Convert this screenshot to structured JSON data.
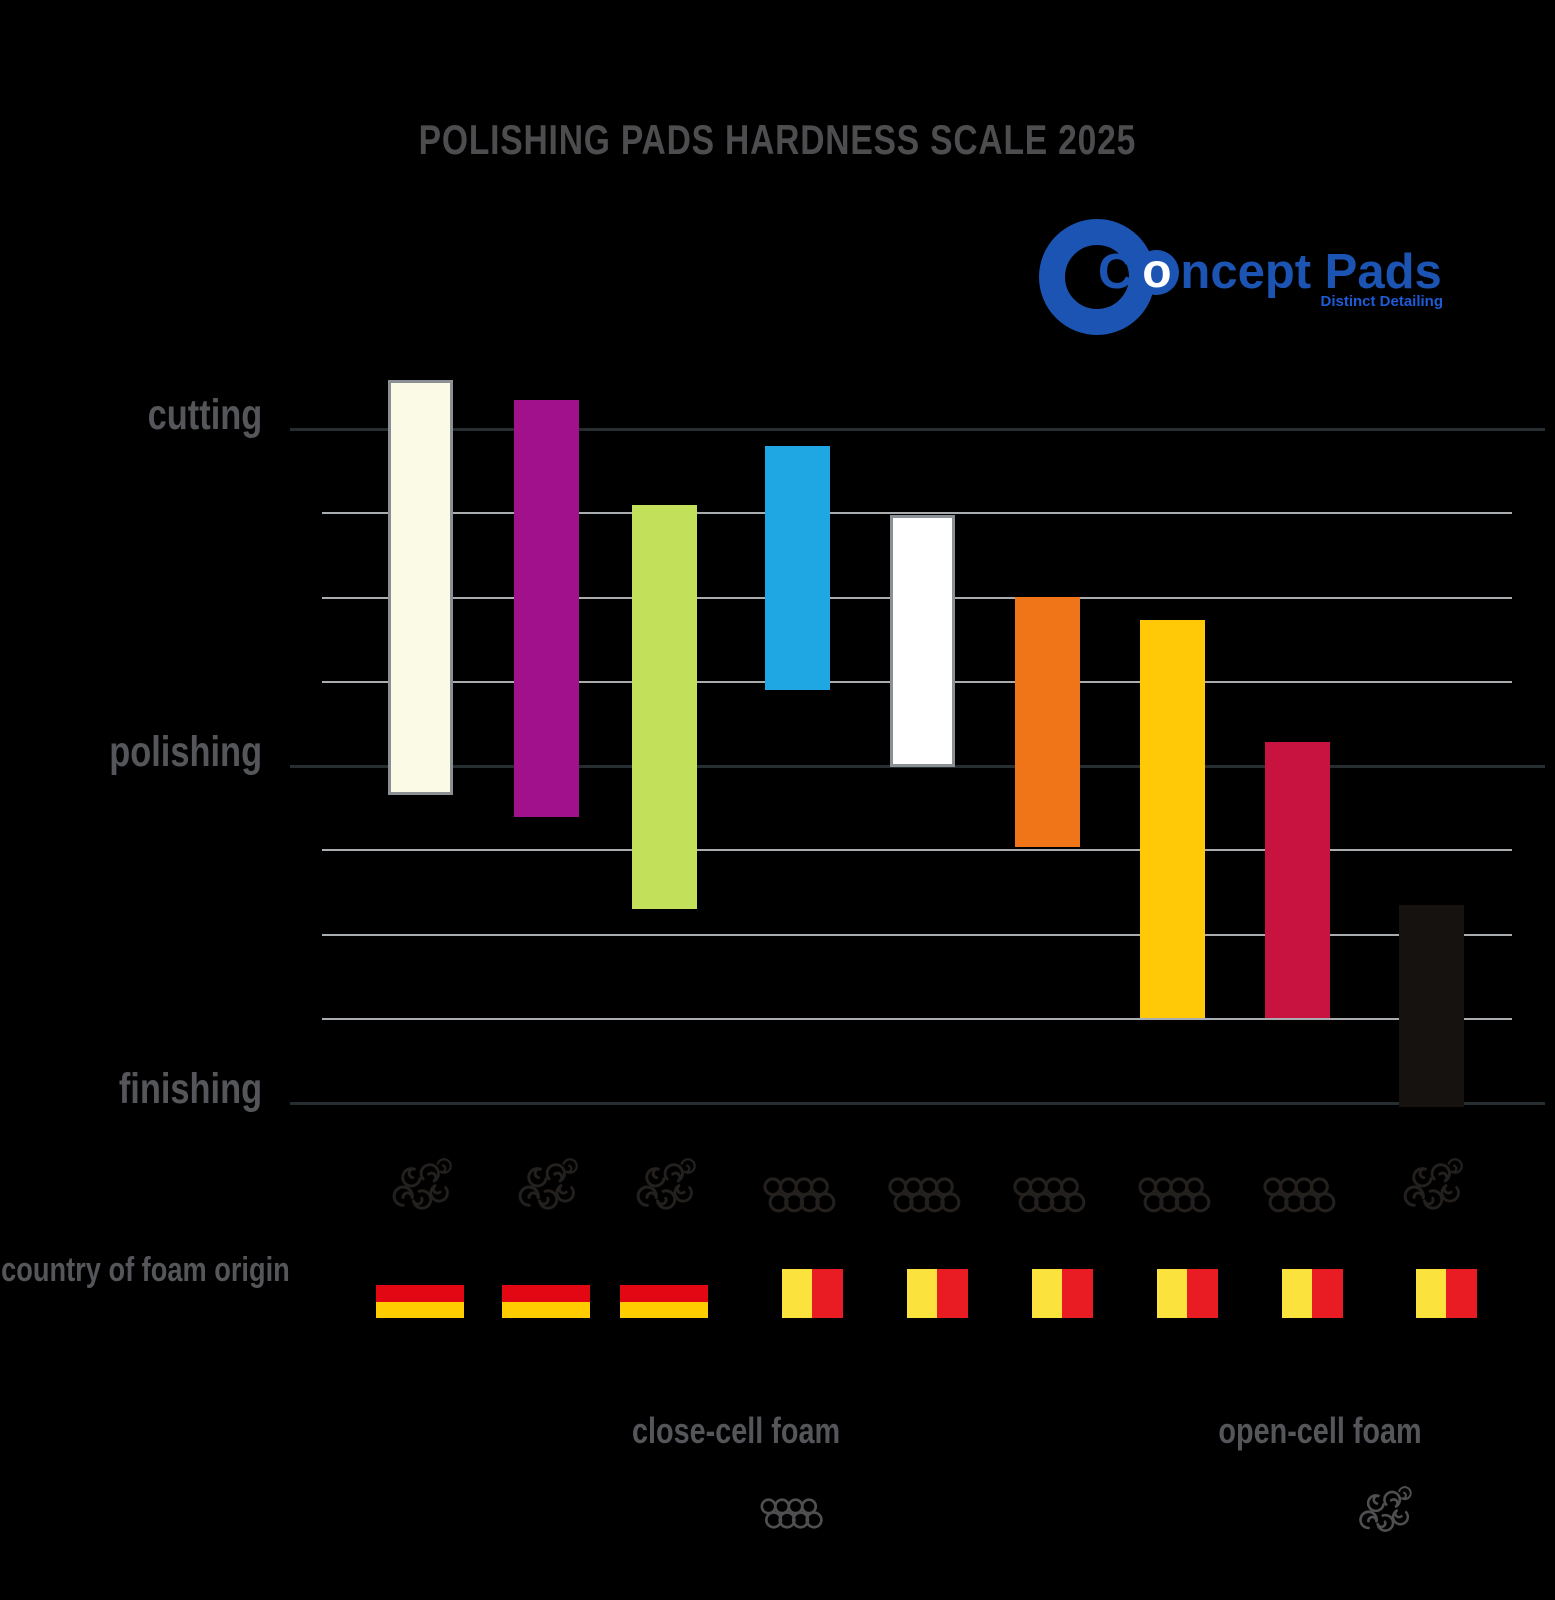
{
  "title": "POLISHING PADS HARDNESS SCALE 2025",
  "logo": {
    "brand": "Concept Pads",
    "tagline": "Distinct Detailing",
    "brand_color": "#1C54B4"
  },
  "chart_data": {
    "type": "bar",
    "subtype": "floating-range-columns",
    "title": "POLISHING PADS HARDNESS SCALE 2025",
    "orientation": "vertical-range-top-hard",
    "y_axis": {
      "direction": "top-to-bottom",
      "ticks": [
        {
          "label": "cutting",
          "unit": 0
        },
        {
          "label": "polishing",
          "unit": 4
        },
        {
          "label": "finishing",
          "unit": 8
        }
      ],
      "minor_gridlines_between": 3,
      "range_units": [
        0,
        8
      ]
    },
    "x_axis": {
      "label": "country of foam origin"
    },
    "pads": [
      {
        "color_name": "ivory",
        "hex": "#FAFAE6",
        "border": true,
        "foam": "open-cell",
        "country": "germany",
        "range": [
          -0.58,
          4.35
        ]
      },
      {
        "color_name": "purple",
        "hex": "#A1118C",
        "border": false,
        "foam": "open-cell",
        "country": "germany",
        "range": [
          -0.35,
          4.6
        ]
      },
      {
        "color_name": "green",
        "hex": "#C2E05A",
        "border": false,
        "foam": "open-cell",
        "country": "germany",
        "range": [
          0.9,
          5.7
        ]
      },
      {
        "color_name": "blue",
        "hex": "#1FA7E3",
        "border": false,
        "foam": "close-cell",
        "country": "belgium",
        "range": [
          0.2,
          3.1
        ]
      },
      {
        "color_name": "white",
        "hex": "#FFFFFF",
        "border": true,
        "foam": "close-cell",
        "country": "belgium",
        "range": [
          1.02,
          4.01
        ]
      },
      {
        "color_name": "orange",
        "hex": "#F07519",
        "border": false,
        "foam": "close-cell",
        "country": "belgium",
        "range": [
          1.99,
          4.96
        ]
      },
      {
        "color_name": "yellow",
        "hex": "#FFC907",
        "border": false,
        "foam": "close-cell",
        "country": "belgium",
        "range": [
          2.27,
          6.99
        ]
      },
      {
        "color_name": "crimson",
        "hex": "#C81240",
        "border": false,
        "foam": "close-cell",
        "country": "belgium",
        "range": [
          3.71,
          6.99
        ]
      },
      {
        "color_name": "black",
        "hex": "#151210",
        "border": false,
        "foam": "open-cell",
        "country": "belgium",
        "range": [
          5.65,
          8.05
        ]
      }
    ],
    "flags": {
      "germany": {
        "layout": "horizontal",
        "colors": [
          "#000000",
          "#E30613",
          "#FFCC00"
        ]
      },
      "belgium": {
        "layout": "vertical",
        "colors": [
          "#000000",
          "#FBE23D",
          "#EA1C23"
        ]
      }
    },
    "legend": [
      {
        "label": "close-cell foam",
        "icon": "close-cell-circles-icon"
      },
      {
        "label": "open-cell foam",
        "icon": "open-cell-swirls-icon"
      }
    ],
    "gridline_colors": {
      "major": "#272E31",
      "minor": "#A9ADB0"
    }
  }
}
